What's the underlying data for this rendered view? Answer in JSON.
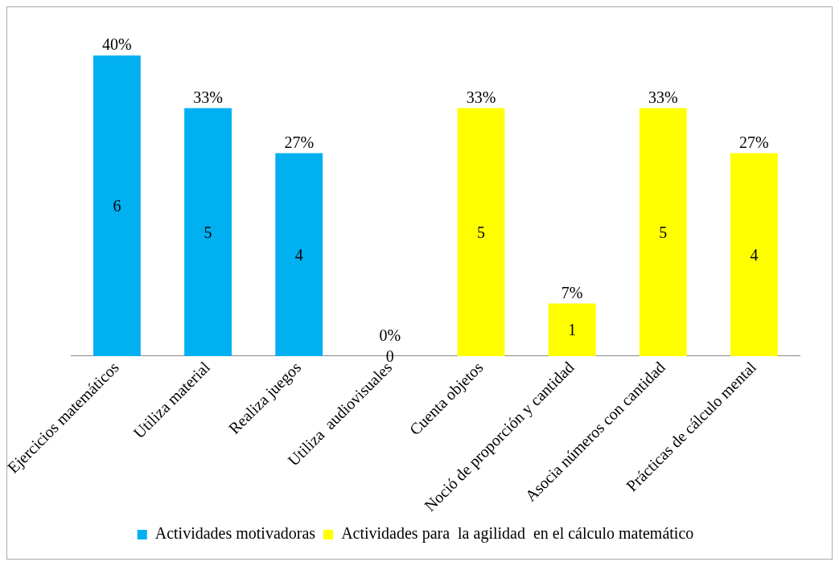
{
  "chart_data": {
    "type": "bar",
    "categories": [
      "Ejercicios matemáticos",
      "Utiliza material",
      "Realiza juegos",
      "Utiliza  audiovisuales",
      "Cuenta objetos",
      "Noció de proporción y cantidad",
      "Asocia números con cantidad",
      "Prácticas de cálculo mental"
    ],
    "series": [
      {
        "name": "Actividades motivadoras",
        "color": "#00b0f0",
        "values": [
          40,
          33,
          27,
          0,
          null,
          null,
          null,
          null
        ],
        "value_labels": [
          "40%",
          "33%",
          "27%",
          "0%",
          null,
          null,
          null,
          null
        ]
      },
      {
        "name": "Actividades para  la agilidad  en el cálculo matemático",
        "color": "#ffff00",
        "values": [
          null,
          null,
          null,
          null,
          33,
          7,
          33,
          27
        ],
        "value_labels": [
          null,
          null,
          null,
          null,
          "33%",
          "7%",
          "33%",
          "27%"
        ]
      }
    ],
    "annotations": [
      "6",
      "5",
      "4",
      "0",
      "5",
      "1",
      "5",
      "4"
    ],
    "legend": "bottom"
  }
}
